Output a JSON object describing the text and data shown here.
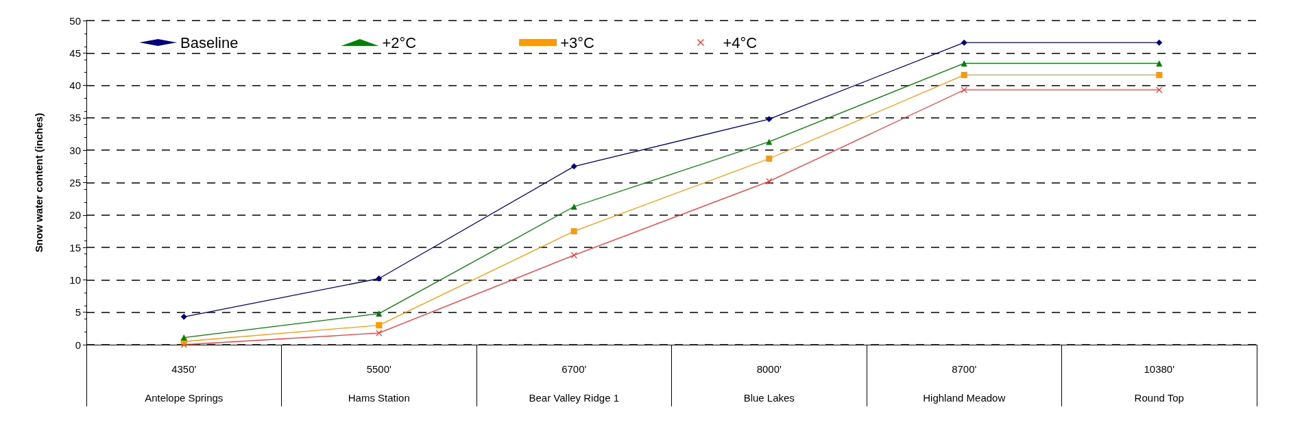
{
  "chart_data": {
    "type": "line",
    "ylabel": "Snow water content (inches)",
    "categories": [
      "4350'\nAntelope Springs",
      "5500'\nHams Station",
      "6700'\nBear Valley Ridge 1",
      "8000'\nBlue Lakes",
      "8700'\nHighland Meadow",
      "10380'\nRound Top"
    ],
    "series": [
      {
        "name": "Baseline",
        "color": "#000080",
        "marker": "diamond",
        "values": [
          4.3,
          10.2,
          27.5,
          34.8,
          46.6,
          46.6
        ]
      },
      {
        "name": "+2°C",
        "color": "#008000",
        "marker": "triangle",
        "values": [
          1.1,
          4.8,
          21.3,
          31.3,
          43.4,
          43.4
        ]
      },
      {
        "name": "+3°C",
        "color": "#ff9900",
        "marker": "square",
        "values": [
          0.5,
          3.0,
          17.5,
          28.7,
          41.6,
          41.6
        ]
      },
      {
        "name": "+4°C",
        "color": "#ff3333",
        "marker": "cross",
        "values": [
          0.0,
          1.8,
          13.8,
          25.2,
          39.3,
          39.3
        ]
      }
    ],
    "ylim": [
      0,
      50
    ],
    "yticks": [
      0,
      5,
      10,
      15,
      20,
      25,
      30,
      35,
      40,
      45,
      50
    ],
    "grid": "y",
    "legend": "top",
    "line_style": "solid"
  }
}
